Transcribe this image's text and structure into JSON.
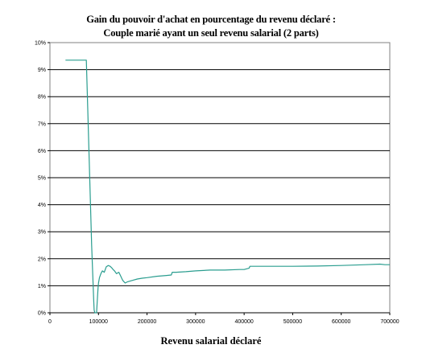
{
  "chart_data": {
    "type": "line",
    "title": "Gain du pouvoir d'achat en pourcentage du revenu déclaré :",
    "subtitle": "Couple marié ayant un seul revenu salarial (2 parts)",
    "xlabel": "Revenu salarial déclaré",
    "ylabel": "",
    "xlim": [
      0,
      700000
    ],
    "ylim": [
      0,
      10
    ],
    "x_ticks": [
      0,
      100000,
      200000,
      300000,
      400000,
      500000,
      600000,
      700000
    ],
    "x_tick_labels": [
      "0",
      "100000",
      "200000",
      "300000",
      "400000",
      "500000",
      "600000",
      "700000"
    ],
    "y_ticks": [
      0,
      1,
      2,
      3,
      4,
      5,
      6,
      7,
      8,
      9,
      10
    ],
    "y_tick_labels": [
      "0%",
      "1%",
      "2%",
      "3%",
      "4%",
      "5%",
      "6%",
      "7%",
      "8%",
      "9%",
      "10%"
    ],
    "grid": "horizontal",
    "legend": "none",
    "series": [
      {
        "color": "#2a9d8f",
        "x": [
          32000,
          50000,
          70000,
          75000,
          78000,
          82000,
          86000,
          90000,
          91000,
          92500,
          96000,
          97000,
          98000,
          99000,
          100000,
          102000,
          105000,
          108000,
          112000,
          116000,
          120000,
          124000,
          128000,
          130000,
          133000,
          137000,
          142000,
          146000,
          150000,
          155000,
          160000,
          170000,
          180000,
          190000,
          200000,
          220000,
          240000,
          250000,
          252000,
          260000,
          280000,
          300000,
          330000,
          360000,
          390000,
          400000,
          410000,
          412000,
          420000,
          450000,
          500000,
          550000,
          600000,
          650000,
          680000,
          690000,
          700000
        ],
        "y": [
          9.35,
          9.35,
          9.35,
          9.35,
          7.5,
          5.0,
          2.5,
          0.5,
          0.1,
          0.0,
          0.0,
          0.3,
          0.6,
          0.9,
          1.1,
          1.3,
          1.45,
          1.55,
          1.5,
          1.7,
          1.75,
          1.72,
          1.65,
          1.6,
          1.55,
          1.45,
          1.5,
          1.35,
          1.2,
          1.1,
          1.15,
          1.2,
          1.25,
          1.28,
          1.3,
          1.35,
          1.38,
          1.4,
          1.5,
          1.5,
          1.52,
          1.55,
          1.58,
          1.58,
          1.6,
          1.6,
          1.65,
          1.72,
          1.72,
          1.72,
          1.72,
          1.73,
          1.75,
          1.78,
          1.8,
          1.78,
          1.78
        ]
      }
    ]
  }
}
